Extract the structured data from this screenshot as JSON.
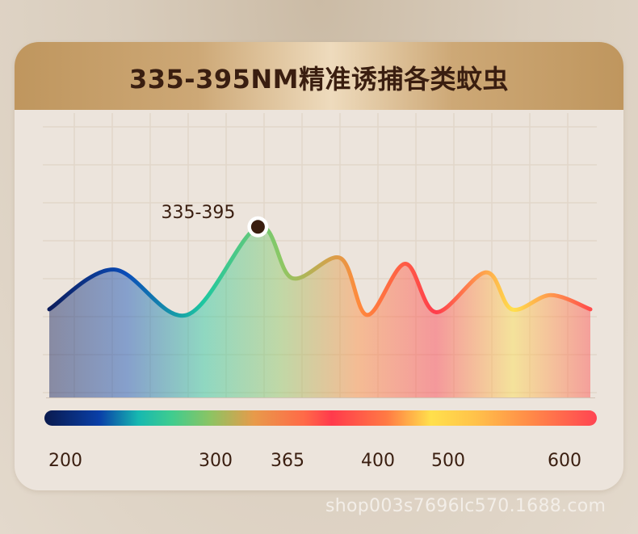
{
  "header": {
    "title": "335-395NM精准诱捕各类蚊虫"
  },
  "chart_data": {
    "type": "area",
    "title": "335-395NM精准诱捕各类蚊虫",
    "xlabel": "",
    "ylabel": "",
    "grid": true,
    "legend": "none",
    "x_ticks": [
      "200",
      "300",
      "365",
      "400",
      "500",
      "600"
    ],
    "peak_label": "335-395",
    "spectrum_colors": [
      "#0d1d5c",
      "#0a4cb8",
      "#1ec8a0",
      "#8cc864",
      "#ff8a3c",
      "#ff3c4c",
      "#ffe04c",
      "#ff4c4c"
    ],
    "curve_points": [
      {
        "x": 0,
        "y": 31
      },
      {
        "x": 80,
        "y": 45
      },
      {
        "x": 170,
        "y": 29
      },
      {
        "x": 258,
        "y": 60
      },
      {
        "x": 300,
        "y": 42
      },
      {
        "x": 360,
        "y": 49
      },
      {
        "x": 393,
        "y": 29
      },
      {
        "x": 440,
        "y": 47
      },
      {
        "x": 478,
        "y": 30
      },
      {
        "x": 540,
        "y": 44
      },
      {
        "x": 572,
        "y": 31
      },
      {
        "x": 620,
        "y": 36
      },
      {
        "x": 669,
        "y": 31
      }
    ],
    "peak_x": 258,
    "xlim": [
      0,
      669
    ],
    "ylim": [
      0,
      100
    ]
  },
  "watermark": "shop003s7696lc570.1688.com"
}
